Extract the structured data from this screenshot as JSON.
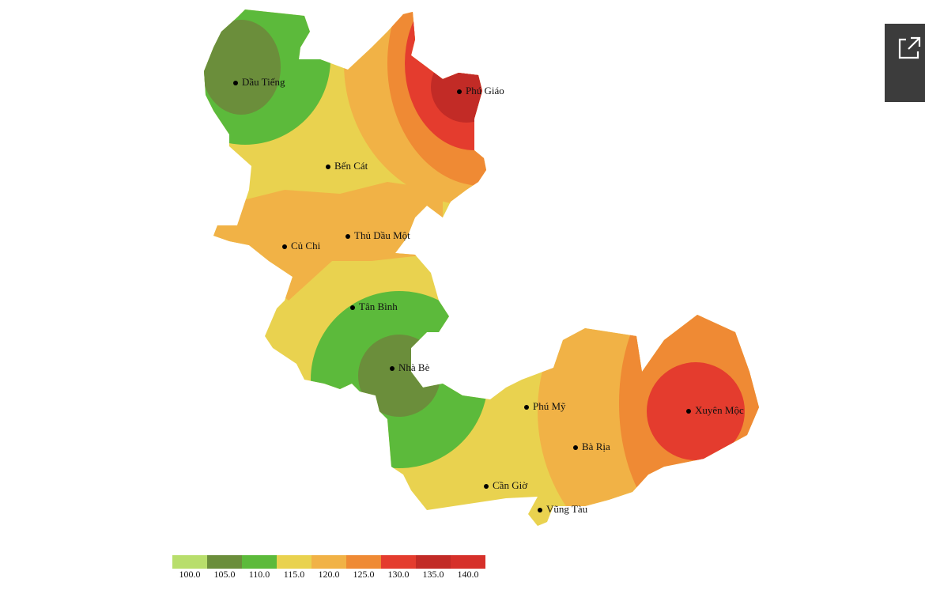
{
  "places": [
    "Dầu Tiếng",
    "Phú Giáo",
    "Bến Cát",
    "Thủ Dầu Một",
    "Củ Chi",
    "Tân Bình",
    "Nhà Bè",
    "Phú Mỹ",
    "Xuyên Mộc",
    "Bà Rịa",
    "Cần Giờ",
    "Vũng Tàu"
  ],
  "legend": {
    "colors": [
      "#b8de6c",
      "#6b8e3b",
      "#5cba3b",
      "#e9d24f",
      "#f1b246",
      "#ef8a34",
      "#e43c2e",
      "#c22b26",
      "#d6302a"
    ],
    "labels": [
      "100.0",
      "105.0",
      "110.0",
      "115.0",
      "120.0",
      "125.0",
      "130.0",
      "135.0",
      "140.0"
    ]
  }
}
